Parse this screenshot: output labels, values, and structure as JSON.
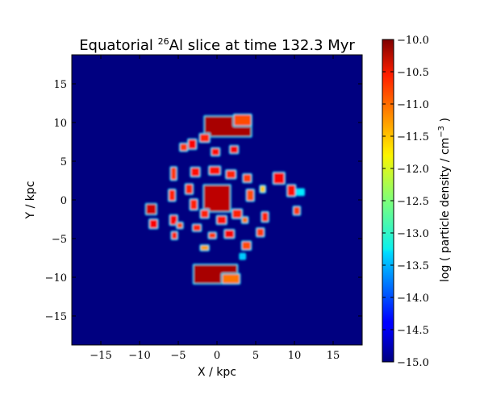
{
  "chart_data": {
    "type": "heatmap",
    "title": {
      "prefix": "Equatorial ",
      "isotope_mass": "26",
      "isotope_symbol": "Al",
      "suffix": " slice at time 132.3 Myr"
    },
    "xlabel": "X / kpc",
    "ylabel": "Y / kpc",
    "xlim": [
      -18.75,
      18.75
    ],
    "ylim": [
      -18.75,
      18.75
    ],
    "xticks": [
      -15,
      -10,
      -5,
      0,
      5,
      10,
      15
    ],
    "yticks": [
      -15,
      -10,
      -5,
      0,
      5,
      10,
      15
    ],
    "xtick_labels": [
      "−15",
      "−10",
      "−5",
      "0",
      "5",
      "10",
      "15"
    ],
    "ytick_labels": [
      "−15",
      "−10",
      "−5",
      "0",
      "5",
      "10",
      "15"
    ],
    "background_value": -15.0,
    "colorbar": {
      "label": "log ( particle density / cm",
      "label_exponent": "−3",
      "label_close": " )",
      "range": [
        -15.0,
        -10.0
      ],
      "ticks": [
        -10.0,
        -10.5,
        -11.0,
        -11.5,
        -12.0,
        -12.5,
        -13.0,
        -13.5,
        -14.0,
        -14.5,
        -15.0
      ],
      "tick_labels": [
        "−10.0",
        "−10.5",
        "−11.0",
        "−11.5",
        "−12.0",
        "−12.5",
        "−13.0",
        "−13.5",
        "−14.0",
        "−14.5",
        "−15.0"
      ],
      "colormap": "jet"
    },
    "features": [
      {
        "x": 1.4,
        "y": 9.5,
        "value": -10.2,
        "w": 6.0,
        "h": 2.6
      },
      {
        "x": 3.3,
        "y": 10.3,
        "value": -11.0,
        "w": 2.2,
        "h": 1.4
      },
      {
        "x": -0.2,
        "y": -9.6,
        "value": -10.2,
        "w": 5.6,
        "h": 2.4
      },
      {
        "x": 1.8,
        "y": -10.2,
        "value": -11.2,
        "w": 2.2,
        "h": 1.2
      },
      {
        "x": 0.0,
        "y": 0.2,
        "value": -10.3,
        "w": 3.4,
        "h": 3.4
      },
      {
        "x": -3.2,
        "y": 7.2,
        "value": -10.6,
        "w": 1.0,
        "h": 1.2
      },
      {
        "x": -1.6,
        "y": 8.0,
        "value": -10.8,
        "w": 1.2,
        "h": 1.0
      },
      {
        "x": -0.2,
        "y": 6.2,
        "value": -10.7,
        "w": 1.0,
        "h": 0.9
      },
      {
        "x": 2.2,
        "y": 6.5,
        "value": -10.6,
        "w": 1.0,
        "h": 0.9
      },
      {
        "x": -4.3,
        "y": 6.8,
        "value": -10.9,
        "w": 0.9,
        "h": 0.9
      },
      {
        "x": -2.8,
        "y": 3.6,
        "value": -10.7,
        "w": 1.1,
        "h": 1.1
      },
      {
        "x": -0.3,
        "y": 3.8,
        "value": -10.7,
        "w": 1.4,
        "h": 1.0
      },
      {
        "x": 1.8,
        "y": 3.3,
        "value": -10.8,
        "w": 1.2,
        "h": 1.0
      },
      {
        "x": 3.9,
        "y": 2.8,
        "value": -10.9,
        "w": 1.0,
        "h": 1.0
      },
      {
        "x": 4.3,
        "y": 0.6,
        "value": -11.0,
        "w": 0.9,
        "h": 1.4
      },
      {
        "x": 5.9,
        "y": 1.4,
        "value": -11.6,
        "w": 0.6,
        "h": 0.8
      },
      {
        "x": 2.6,
        "y": -1.8,
        "value": -10.8,
        "w": 1.2,
        "h": 1.1
      },
      {
        "x": 3.6,
        "y": -2.6,
        "value": -11.2,
        "w": 0.7,
        "h": 0.7
      },
      {
        "x": 0.6,
        "y": -2.6,
        "value": -10.7,
        "w": 1.2,
        "h": 1.0
      },
      {
        "x": -1.6,
        "y": -1.8,
        "value": -10.8,
        "w": 1.0,
        "h": 1.0
      },
      {
        "x": -3.0,
        "y": -0.6,
        "value": -10.8,
        "w": 0.9,
        "h": 1.3
      },
      {
        "x": -3.6,
        "y": 1.4,
        "value": -10.8,
        "w": 0.9,
        "h": 1.2
      },
      {
        "x": -5.6,
        "y": 3.4,
        "value": -10.9,
        "w": 0.7,
        "h": 1.6
      },
      {
        "x": -5.8,
        "y": 0.6,
        "value": -10.8,
        "w": 0.8,
        "h": 1.4
      },
      {
        "x": -5.6,
        "y": -2.6,
        "value": -10.6,
        "w": 0.9,
        "h": 1.2
      },
      {
        "x": -5.5,
        "y": -4.6,
        "value": -10.8,
        "w": 0.7,
        "h": 0.9
      },
      {
        "x": -8.5,
        "y": -1.2,
        "value": -10.4,
        "w": 1.3,
        "h": 1.3
      },
      {
        "x": -8.2,
        "y": -3.1,
        "value": -10.6,
        "w": 1.0,
        "h": 1.1
      },
      {
        "x": -4.8,
        "y": -3.3,
        "value": -11.0,
        "w": 0.7,
        "h": 0.7
      },
      {
        "x": -2.6,
        "y": -3.6,
        "value": -10.8,
        "w": 1.0,
        "h": 0.8
      },
      {
        "x": -0.6,
        "y": -4.6,
        "value": -10.9,
        "w": 0.9,
        "h": 0.7
      },
      {
        "x": 1.6,
        "y": -4.4,
        "value": -10.6,
        "w": 1.2,
        "h": 1.0
      },
      {
        "x": -1.6,
        "y": -6.2,
        "value": -11.4,
        "w": 1.0,
        "h": 0.6
      },
      {
        "x": 3.8,
        "y": -5.9,
        "value": -11.0,
        "w": 1.1,
        "h": 1.0
      },
      {
        "x": 3.3,
        "y": -7.3,
        "value": -13.4,
        "w": 0.6,
        "h": 0.6
      },
      {
        "x": 5.6,
        "y": -4.2,
        "value": -10.9,
        "w": 0.9,
        "h": 1.0
      },
      {
        "x": 6.2,
        "y": -2.2,
        "value": -10.8,
        "w": 0.8,
        "h": 1.2
      },
      {
        "x": 8.0,
        "y": 2.8,
        "value": -10.6,
        "w": 1.4,
        "h": 1.4
      },
      {
        "x": 9.6,
        "y": 1.2,
        "value": -10.7,
        "w": 1.0,
        "h": 1.4
      },
      {
        "x": 10.3,
        "y": -1.4,
        "value": -10.9,
        "w": 0.8,
        "h": 1.0
      },
      {
        "x": 10.8,
        "y": 1.0,
        "value": -13.2,
        "w": 0.8,
        "h": 0.7
      }
    ]
  }
}
